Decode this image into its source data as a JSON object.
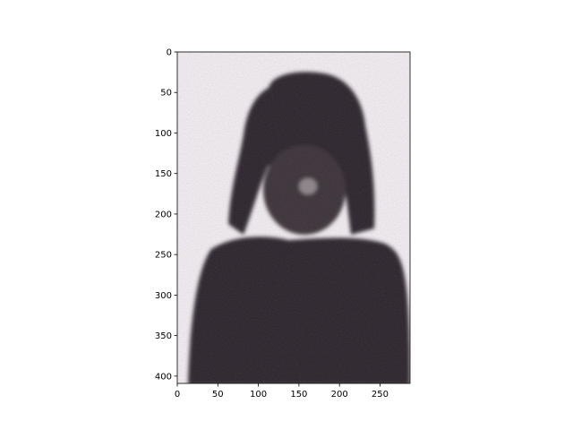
{
  "chart_data": {
    "type": "heatmap",
    "title": "",
    "xlabel": "",
    "ylabel": "",
    "xlim": [
      0,
      287
    ],
    "ylim": [
      409,
      0
    ],
    "xticks": [
      0,
      50,
      100,
      150,
      200,
      250
    ],
    "yticks": [
      0,
      50,
      100,
      150,
      200,
      250,
      300,
      350,
      400
    ],
    "grid": false,
    "legend": "none",
    "colors": {
      "background": "#f2eef2",
      "subject_dark": "#2f272d",
      "subject_mid": "#3e363b",
      "noise": "#6b5f68"
    },
    "image_content": "grainy monochrome portrait of a person with dark hair"
  }
}
